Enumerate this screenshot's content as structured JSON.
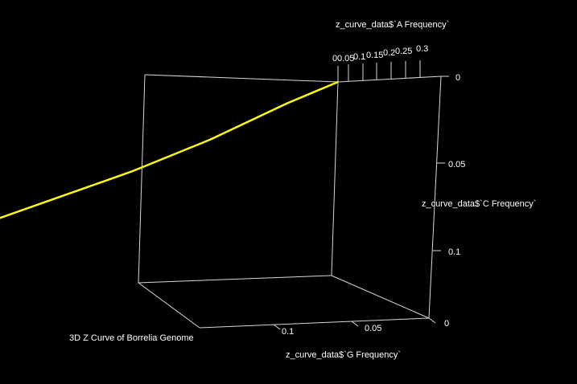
{
  "chart_data": {
    "type": "line",
    "title": "3D Z Curve of Borrelia Genome",
    "axes": {
      "x": {
        "label": "z_curve_data$`G Frequency`",
        "ticks": [
          "0",
          "0.05",
          "0.1"
        ]
      },
      "y": {
        "label": "z_curve_data$`A Frequency`",
        "ticks": [
          "0",
          "0.05",
          "0.1",
          "0.15",
          "0.2",
          "0.25",
          "0.3"
        ]
      },
      "z": {
        "label": "z_curve_data$`C Frequency`",
        "ticks": [
          "0",
          "0.05",
          "0.1"
        ]
      }
    },
    "series": [
      {
        "color": "#ffff00",
        "points": [
          {
            "G": 0.0,
            "A": 0.0,
            "C": 0.0
          },
          {
            "G": 0.016,
            "A": 0.04,
            "C": 0.017
          },
          {
            "G": 0.04,
            "A": 0.11,
            "C": 0.043
          },
          {
            "G": 0.065,
            "A": 0.17,
            "C": 0.066
          },
          {
            "G": 0.11,
            "A": 0.26,
            "C": 0.103
          },
          {
            "G": 0.145,
            "A": 0.33,
            "C": 0.125
          }
        ]
      }
    ],
    "background": "#000000",
    "box_color": "#d8d8d8",
    "grid": false
  }
}
